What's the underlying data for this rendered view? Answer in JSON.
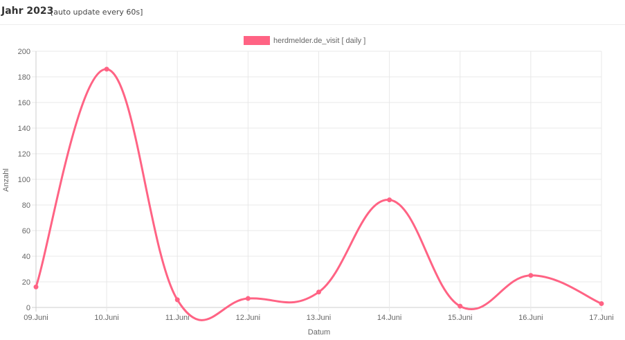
{
  "header": {
    "title": "Jahr 2023",
    "note": "[auto update every 60s]"
  },
  "colors": {
    "series": "#ff6384",
    "grid": "#e8e8e8",
    "axis": "#cccccc",
    "text": "#666666"
  },
  "chart_data": {
    "type": "line",
    "categories": [
      "09.Juni",
      "10.Juni",
      "11.Juni",
      "12.Juni",
      "13.Juni",
      "14.Juni",
      "15.Juni",
      "16.Juni",
      "17.Juni"
    ],
    "series": [
      {
        "name": "herdmelder.de_visit [ daily ]",
        "values": [
          16,
          186,
          6,
          7,
          12,
          84,
          1,
          25,
          3
        ]
      }
    ],
    "xlabel": "Datum",
    "ylabel": "Anzahl",
    "ylim": [
      0,
      200
    ],
    "yticks": [
      "0",
      "20",
      "40",
      "60",
      "80",
      "100",
      "120",
      "140",
      "160",
      "180",
      "200"
    ],
    "grid": true,
    "legend": "top"
  }
}
